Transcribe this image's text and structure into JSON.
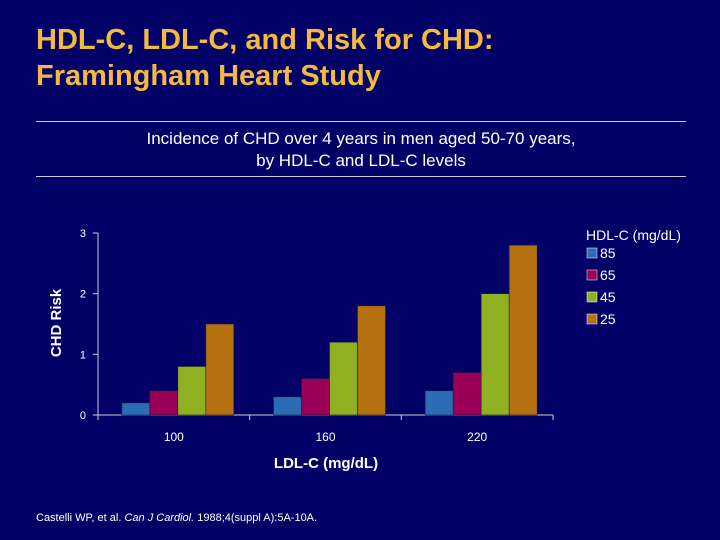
{
  "slide": {
    "title_line1": "HDL-C, LDL-C, and Risk for CHD:",
    "title_line2": "Framingham Heart Study",
    "subtitle_line1": "Incidence of CHD over 4 years in men aged 50-70 years,",
    "subtitle_line2": "by HDL-C and LDL-C levels",
    "citation_authors": "Castelli WP, et al.",
    "citation_journal": "Can J Cardiol.",
    "citation_rest": "1988;4(suppl A):5A-10A."
  },
  "chart_data": {
    "type": "bar",
    "title": "",
    "xlabel": "LDL-C (mg/dL)",
    "ylabel": "CHD Risk",
    "ylim": [
      0,
      3
    ],
    "yticks": [
      "0",
      "1",
      "2",
      "3"
    ],
    "categories": [
      "100",
      "160",
      "220"
    ],
    "legend_title": "HDL-C (mg/dL)",
    "legend_position": "right",
    "series": [
      {
        "name": "85",
        "color": "#2a6db5",
        "values": [
          0.2,
          0.3,
          0.4
        ]
      },
      {
        "name": "65",
        "color": "#990055",
        "values": [
          0.4,
          0.6,
          0.7
        ]
      },
      {
        "name": "45",
        "color": "#8fb021",
        "values": [
          0.8,
          1.2,
          2.0
        ]
      },
      {
        "name": "25",
        "color": "#b5700f",
        "values": [
          1.5,
          1.8,
          2.8
        ]
      }
    ]
  }
}
